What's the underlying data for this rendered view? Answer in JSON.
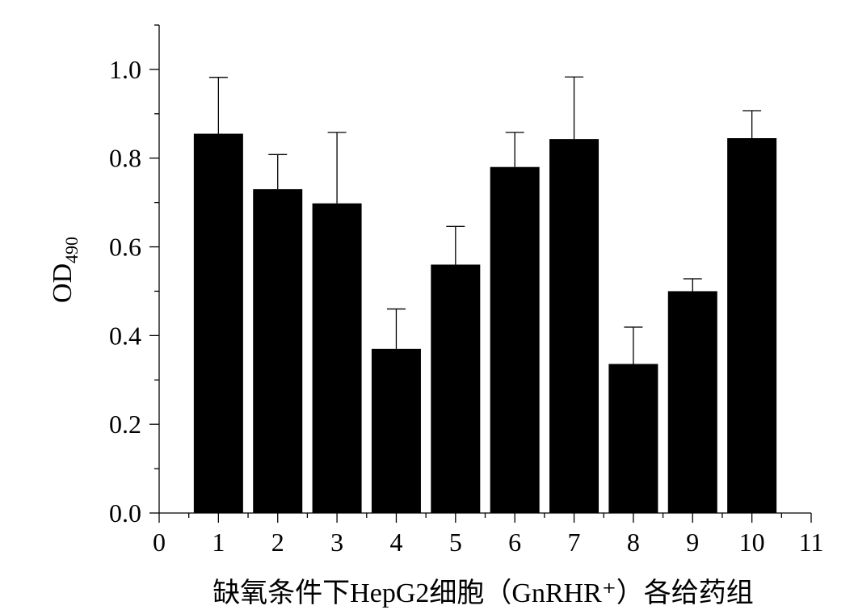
{
  "chart_data": {
    "type": "bar",
    "x_label": "缺氧条件下HepG2细胞（GnRHR⁺）各给药组",
    "y_label": {
      "main": "OD",
      "subscript": "490"
    },
    "xlim": [
      0,
      11
    ],
    "ylim": [
      0,
      1.1
    ],
    "x_ticks": [
      0,
      1,
      2,
      3,
      4,
      5,
      6,
      7,
      8,
      9,
      10,
      11
    ],
    "x_tick_labels": [
      "0",
      "1",
      "2",
      "3",
      "4",
      "5",
      "6",
      "7",
      "8",
      "9",
      "10",
      "11"
    ],
    "y_ticks": [
      0.0,
      0.2,
      0.4,
      0.6,
      0.8,
      1.0
    ],
    "y_tick_labels": [
      "0.0",
      "0.2",
      "0.4",
      "0.6",
      "0.8",
      "1.0"
    ],
    "x": [
      1,
      2,
      3,
      4,
      5,
      6,
      7,
      8,
      9,
      10
    ],
    "values": [
      0.855,
      0.73,
      0.698,
      0.37,
      0.56,
      0.78,
      0.843,
      0.336,
      0.5,
      0.845
    ],
    "errors": [
      0.127,
      0.078,
      0.16,
      0.09,
      0.086,
      0.078,
      0.14,
      0.083,
      0.028,
      0.062
    ],
    "bar_color": "#000000",
    "axis_color": "#000000",
    "grid": false,
    "legend": "none"
  }
}
